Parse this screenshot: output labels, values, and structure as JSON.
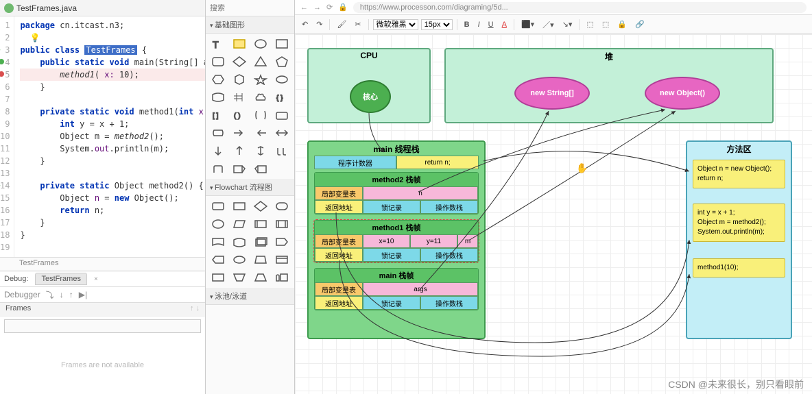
{
  "ide": {
    "file_tab": "TestFrames.java",
    "nav": "TestFrames",
    "code_lines": [
      {
        "n": 1,
        "html": "<span class='kw'>package</span> cn.itcast.n3;"
      },
      {
        "n": 2,
        "html": "  <span class='bulb'>💡</span>"
      },
      {
        "n": 3,
        "html": "<span class='kw'>public class</span> <span class='hl'>TestFrames</span> {",
        "mark": "run"
      },
      {
        "n": 4,
        "html": "    <span class='kw'>public static void</span> main(String[] args) {",
        "mark": "green"
      },
      {
        "n": 5,
        "html": "        <span class='fn'>method1</span>( <span class='param'>x:</span> 10);",
        "mark": "red",
        "err": true
      },
      {
        "n": 6,
        "html": "    }"
      },
      {
        "n": 7,
        "html": ""
      },
      {
        "n": 8,
        "html": "    <span class='kw'>private static void</span> method1(<span class='kw'>int</span> <span class='param'>x</span>) {"
      },
      {
        "n": 9,
        "html": "        <span class='kw'>int</span> y = x + 1;"
      },
      {
        "n": 10,
        "html": "        Object m = <span class='fn'>method2</span>();"
      },
      {
        "n": 11,
        "html": "        System.<span class='param'>out</span>.println(m);"
      },
      {
        "n": 12,
        "html": "    }"
      },
      {
        "n": 13,
        "html": ""
      },
      {
        "n": 14,
        "html": "    <span class='kw'>private static</span> Object method2() {",
        "mark": "gray"
      },
      {
        "n": 15,
        "html": "        Object <span class='param'>n</span> = <span class='kw'>new</span> Object();"
      },
      {
        "n": 16,
        "html": "        <span class='kw'>return</span> n;"
      },
      {
        "n": 17,
        "html": "    }"
      },
      {
        "n": 18,
        "html": "}"
      },
      {
        "n": 19,
        "html": ""
      }
    ],
    "debug_label": "Debug:",
    "debug_tab": "TestFrames",
    "debugger_label": "Debugger",
    "frames_label": "Frames",
    "frames_empty": "Frames are not available"
  },
  "palette": {
    "search_placeholder": "搜索",
    "sections": [
      "基础图形",
      "Flowchart 流程图",
      "泳池/泳道"
    ]
  },
  "toolbar": {
    "url": "https://www.processon.com/diagraming/5d...",
    "font": "微软雅黑",
    "size": "15px",
    "buttons": [
      "B",
      "I",
      "U",
      "A"
    ]
  },
  "diagram": {
    "cpu_title": "CPU",
    "core": "核心",
    "heap_title": "堆",
    "new_string": "new String[]",
    "new_object": "new Object()",
    "stack_title": "main 线程栈",
    "pc": "程序计数器",
    "pc_val": "return n;",
    "f2_title": "method2 栈帧",
    "f1_title": "method1 栈帧",
    "f0_title": "main 栈帧",
    "locals": "局部变量表",
    "ret": "返回地址",
    "lock": "锁记录",
    "op": "操作数栈",
    "f2_var": "n",
    "f1_x": "x=10",
    "f1_y": "y=11",
    "f1_m": "m",
    "f0_args": "args",
    "ma_title": "方法区",
    "snip2": "Object n = new Object();\nreturn n;",
    "snip1": "int y = x + 1;\nObject m = method2();\nSystem.out.println(m);",
    "snip0": "method1(10);"
  },
  "watermark": "CSDN @未来很长，别只看眼前",
  "colors": {
    "green_bg": "#c3f0d8",
    "green_border": "#5fa97f",
    "core": "#4caf50",
    "pink": "#e766c2",
    "stack": "#7fd68a",
    "cyan": "#c3eef7",
    "yellow": "#f9f07a",
    "orange": "#f9c96b",
    "cell_cyan": "#7dd9e8",
    "cell_pink": "#f7b8d9"
  }
}
